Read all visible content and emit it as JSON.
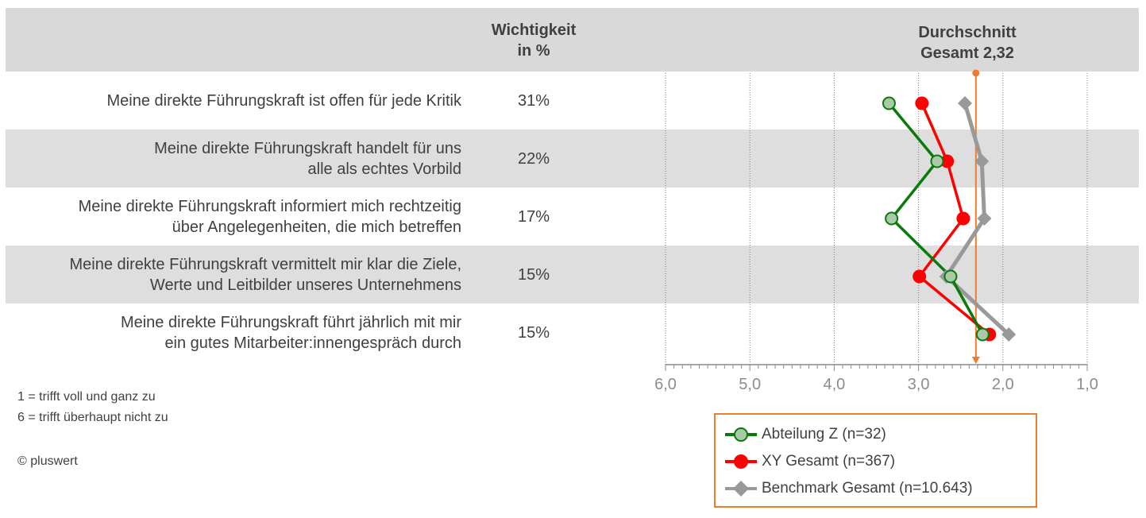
{
  "header": {
    "importance_line1": "Wichtigkeit",
    "importance_line2": "in %",
    "average_line1": "Durchschnitt",
    "average_line2": "Gesamt 2,32"
  },
  "rows": [
    {
      "label": "Meine direkte Führungskraft ist offen für jede Kritik",
      "pct": "31%"
    },
    {
      "label": "Meine direkte Führungskraft handelt für uns\nalle als echtes Vorbild",
      "pct": "22%"
    },
    {
      "label": "Meine direkte Führungskraft informiert mich rechtzeitig\nüber Angelegenheiten, die mich betreffen",
      "pct": "17%"
    },
    {
      "label": "Meine direkte Führungskraft vermittelt mir klar die Ziele,\nWerte und Leitbilder unseres Unternehmens",
      "pct": "15%"
    },
    {
      "label": "Meine direkte Führungskraft führt jährlich mit mir\nein gutes Mitarbeiter:innengespräch durch",
      "pct": "15%"
    }
  ],
  "notes": {
    "scale_1": "1 = trifft voll und ganz zu",
    "scale_6": "6 = trifft überhaupt nicht zu",
    "copyright": "© pluswert"
  },
  "chart_data": {
    "type": "line",
    "orientation": "horizontal",
    "x_axis_reversed": true,
    "xlim": [
      6.0,
      1.0
    ],
    "x_ticks": [
      "6,0",
      "5,0",
      "4,0",
      "3,0",
      "2,0",
      "1,0"
    ],
    "x_tick_values": [
      6,
      5,
      4,
      3,
      2,
      1
    ],
    "categories": [
      "Meine direkte Führungskraft ist offen für jede Kritik",
      "Meine direkte Führungskraft handelt für uns alle als echtes Vorbild",
      "Meine direkte Führungskraft informiert mich rechtzeitig über Angelegenheiten, die mich betreffen",
      "Meine direkte Führungskraft vermittelt mir klar die Ziele, Werte und Leitbilder unseres Unternehmens",
      "Meine direkte Führungskraft führt jährlich mit mir ein gutes Mitarbeiter:innengespräch durch"
    ],
    "average_line": {
      "value": 2.32,
      "color": "#ed7d31"
    },
    "grid": "vertical",
    "legend_position": "bottom-right",
    "series": [
      {
        "name": "Abteilung Z (n=32)",
        "color": "#0a7a0a",
        "marker": "circle",
        "marker_fill": "#a9c9a9",
        "values": [
          3.35,
          2.78,
          3.32,
          2.62,
          2.24
        ]
      },
      {
        "name": "XY Gesamt (n=367)",
        "color": "#ff0000",
        "marker": "circle",
        "marker_fill": "#ff0000",
        "values": [
          2.96,
          2.66,
          2.47,
          2.99,
          2.16
        ]
      },
      {
        "name": "Benchmark Gesamt (n=10.643)",
        "color": "#999999",
        "marker": "diamond",
        "marker_fill": "#999999",
        "values": [
          2.45,
          2.25,
          2.22,
          2.67,
          1.93
        ]
      }
    ]
  }
}
